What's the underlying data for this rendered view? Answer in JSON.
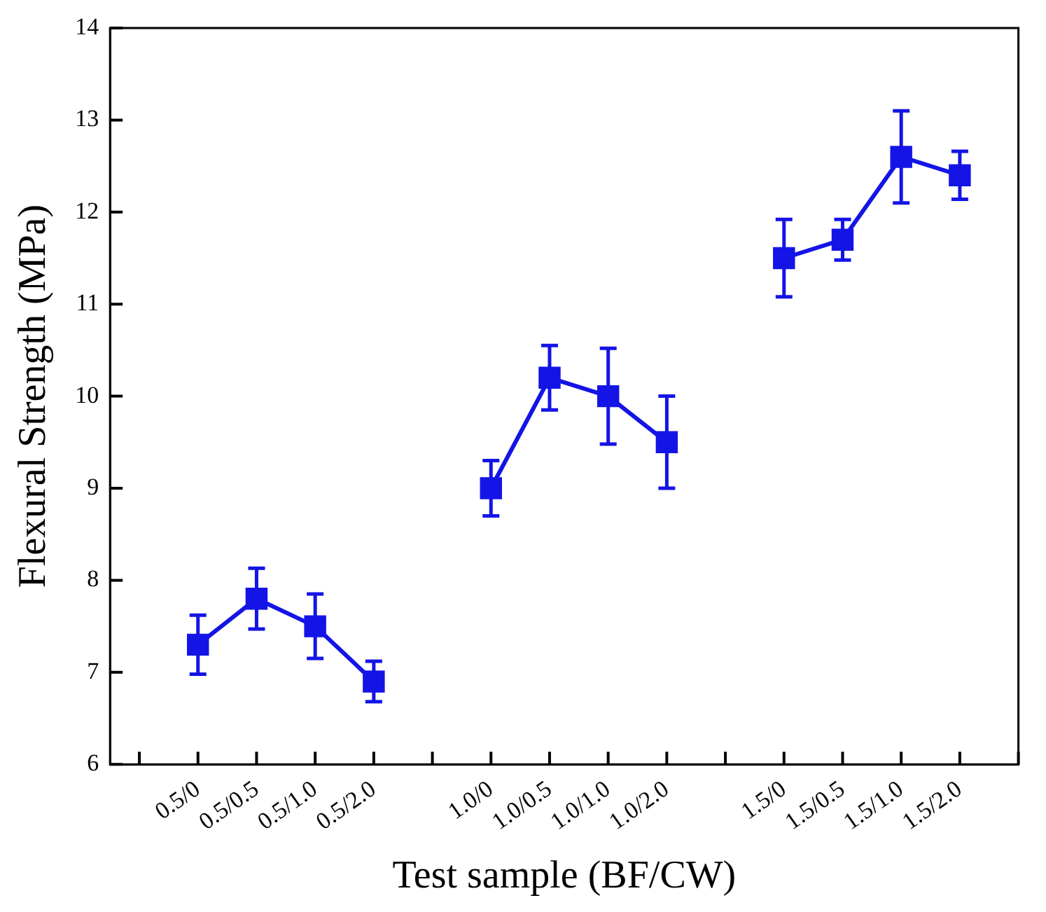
{
  "chart_data": {
    "type": "line",
    "xlabel": "Test sample (BF/CW)",
    "ylabel": "Flexural Strength (MPa)",
    "categories": [
      null,
      "0.5/0",
      "0.5/0.5",
      "0.5/1.0",
      "0.5/2.0",
      null,
      "1.0/0",
      "1.0/0.5",
      "1.0/1.0",
      "1.0/2.0",
      null,
      "1.5/0",
      "1.5/0.5",
      "1.5/1.0",
      "1.5/2.0",
      null
    ],
    "series": [
      {
        "color": "#1414e6",
        "values": [
          null,
          7.3,
          7.8,
          7.5,
          6.9,
          null,
          9.0,
          10.2,
          10.0,
          9.5,
          null,
          11.5,
          11.7,
          12.6,
          12.4,
          null
        ],
        "errors": [
          null,
          0.32,
          0.33,
          0.35,
          0.22,
          null,
          0.3,
          0.35,
          0.52,
          0.5,
          null,
          0.42,
          0.22,
          0.5,
          0.26,
          null
        ]
      }
    ],
    "ylim": [
      6,
      14
    ],
    "yticks": [
      6,
      7,
      8,
      9,
      10,
      11,
      12,
      13,
      14
    ],
    "marker": "square",
    "line_style": "solid",
    "grid": false,
    "legend": false
  }
}
